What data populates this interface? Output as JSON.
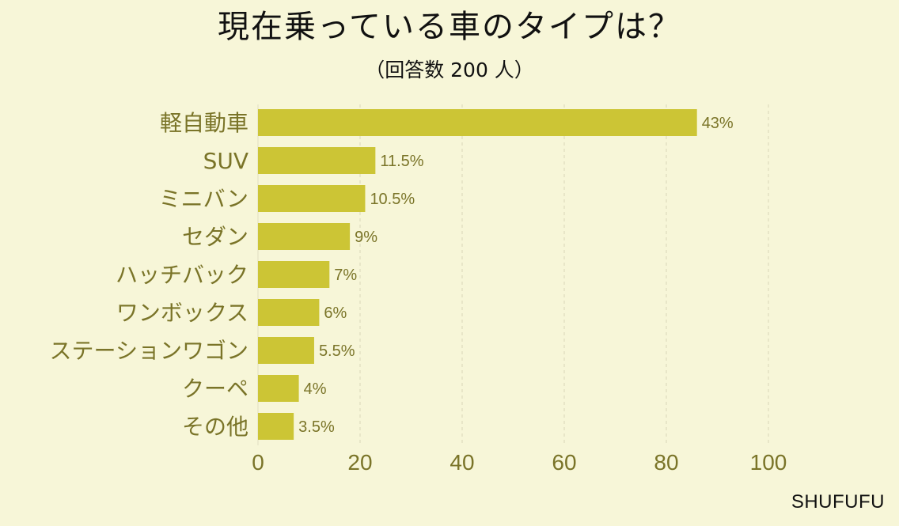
{
  "title": "現在乗っている車のタイプは？",
  "subtitle": "（回答数 200 人）",
  "brand": "SHUFUFU",
  "colors": {
    "background": "#f7f6d8",
    "bar": "#ccc535",
    "text": "#7a7428",
    "grid": "#d8d5b8"
  },
  "chart_data": {
    "type": "bar",
    "orientation": "horizontal",
    "categories": [
      "軽自動車",
      "SUV",
      "ミニバン",
      "セダン",
      "ハッチバック",
      "ワンボックス",
      "ステーションワゴン",
      "クーペ",
      "その他"
    ],
    "values": [
      86,
      23,
      21,
      18,
      14,
      12,
      11,
      8,
      7
    ],
    "data_labels": [
      "43%",
      "11.5%",
      "10.5%",
      "9%",
      "7%",
      "6%",
      "5.5%",
      "4%",
      "3.5%"
    ],
    "xlim": [
      0,
      100
    ],
    "xticks": [
      0,
      20,
      40,
      60,
      80,
      100
    ],
    "xtick_labels": [
      "0",
      "20",
      "40",
      "60",
      "80",
      "100"
    ],
    "grid": "vertical dashed"
  }
}
